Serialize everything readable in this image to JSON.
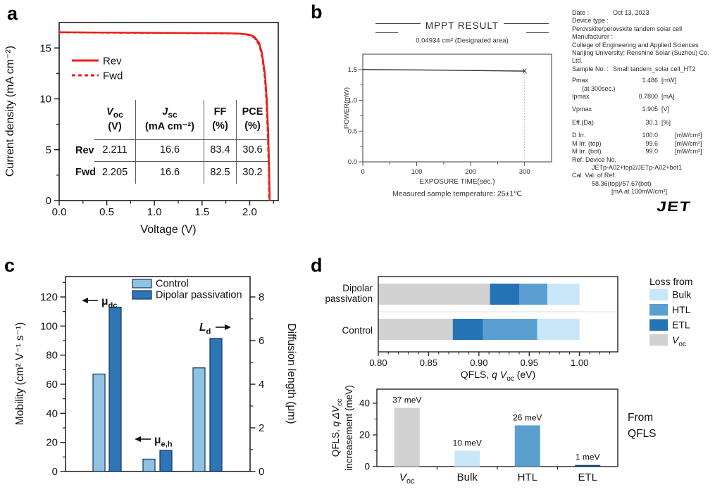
{
  "colors": {
    "red": "#e8211c",
    "control_blue": "#8fc3e1",
    "passivation_blue": "#2e75b6",
    "bar_border": "#16365c",
    "bulk_blue": "#c9e7f8",
    "htl_blue": "#5b9fd0",
    "etl_blue": "#2473b5",
    "etl_dark": "#1c4670",
    "voc_gray": "#d2d2d2",
    "axis_black": "#1a1a1a",
    "scan_gray": "#2e2e2e"
  },
  "panels": {
    "a": {
      "label": "a",
      "xlabel": "Voltage (V)",
      "ylabel": "Current density (mA cm⁻²)",
      "xtick_labels": [
        "0.0",
        "0.5",
        "1.0",
        "1.5",
        "2.0"
      ],
      "ytick_labels": [
        "0",
        "5",
        "10",
        "15"
      ],
      "legend": [
        {
          "label": "Rev",
          "style": "solid"
        },
        {
          "label": "Fwd",
          "style": "dashed"
        }
      ],
      "table": {
        "headers": [
          {
            "name": "*V*_{oc}",
            "unit": "(V)"
          },
          {
            "name": "*J*_{sc}",
            "unit": "(mA cm⁻²)"
          },
          {
            "name": "FF",
            "unit": "(%)"
          },
          {
            "name": "PCE",
            "unit": "(%)"
          }
        ],
        "rows": [
          {
            "name": "Rev",
            "values": [
              "2.211",
              "16.6",
              "83.4",
              "30.6"
            ]
          },
          {
            "name": "Fwd",
            "values": [
              "2.205",
              "16.6",
              "82.5",
              "30.2"
            ]
          }
        ]
      }
    },
    "b": {
      "label": "b",
      "title": "MPPT RESULT",
      "area_note": "0.04934 cm² (Designated area)",
      "ylabel": "POWER(mW)",
      "xlabel": "EXPOSURE TIME(sec.)",
      "temperature_note": "Measured sample temperature: 25±1℃",
      "ytick_labels": [
        "0.0",
        "0.5",
        "1.0",
        "1.5"
      ],
      "xtick_labels": [
        "0",
        "100",
        "200",
        "300"
      ],
      "end_marker": "X",
      "logo": "JET",
      "info": [
        {
          "k": "kv",
          "l": "Date :",
          "v": "Oct 13, 2023"
        },
        {
          "k": "p",
          "t": "Device type :"
        },
        {
          "k": "p",
          "t": "Perovskite/perovskite tandem solar cell"
        },
        {
          "k": "p",
          "t": "Manufacturer :"
        },
        {
          "k": "p",
          "t": "College of Engineering and Applied Sciences"
        },
        {
          "k": "p",
          "t": "Nanjing University; Renshine Solar (Suzhou) Co. Ltd."
        },
        {
          "k": "kv",
          "l": "Sample No. :",
          "v": "Small tandem_solar cell_HT2"
        },
        {
          "k": "sp",
          "h": 5
        },
        {
          "k": "m",
          "l": "Pmax",
          "v": "1.486",
          "u": "[mW]"
        },
        {
          "k": "p",
          "t": "(at 300sec.)",
          "ind": 1
        },
        {
          "k": "m",
          "l": "Ipmax",
          "v": "0.7800",
          "u": "[mA]"
        },
        {
          "k": "sp",
          "h": 7
        },
        {
          "k": "m",
          "l": "Vpmax",
          "v": "1.905",
          "u": "[V]"
        },
        {
          "k": "sp",
          "h": 7
        },
        {
          "k": "m",
          "l": "Eff.(Da)",
          "v": "30.1",
          "u": "[%]"
        },
        {
          "k": "sp",
          "h": 7
        },
        {
          "k": "m",
          "l": "D Irr.",
          "v": "100.0",
          "u": "[mW/cm²]",
          "far": true
        },
        {
          "k": "m",
          "l": "M Irr. (top)",
          "v": "99.6",
          "u": "[mW/cm²]",
          "far": true
        },
        {
          "k": "m",
          "l": "M Irr. (bot)",
          "v": "99.0",
          "u": "[mW/cm²]",
          "far": true
        },
        {
          "k": "p",
          "t": "Ref. Device No."
        },
        {
          "k": "p",
          "t": "JETp-A02+top2/JETp-A02+bot1",
          "ind": 2
        },
        {
          "k": "p",
          "t": "Cal. Val. of Ref."
        },
        {
          "k": "p",
          "t": "58.36(top)/57.67(bot)",
          "ind": 2
        },
        {
          "k": "p",
          "t": "[mA at 100mW/cm²]",
          "ind": 3
        }
      ]
    },
    "c": {
      "label": "c",
      "ylabel_left": "Mobility (cm² V⁻¹ s⁻¹)",
      "ylabel_right": "Diffusion length (μm)",
      "legend": [
        "Control",
        "Dipolar passivation"
      ]
    },
    "d": {
      "label": "d",
      "stack_xlabel": "QFLS, *q* *V*_{oc} (eV)",
      "legend_title": "Loss from",
      "gain_ylabel_line1": "QFLS, *q* *ΔV*_{oc}",
      "gain_ylabel_line2": "increasement (meV)",
      "side_note": [
        "From",
        "QFLS"
      ]
    }
  },
  "chart_data": [
    {
      "id": "jv_curves",
      "type": "line",
      "xlabel": "Voltage (V)",
      "ylabel": "Current density (mA cm⁻²)",
      "xlim": [
        0,
        2.3
      ],
      "ylim": [
        0,
        17.5
      ],
      "xticks": [
        0,
        0.5,
        1.0,
        1.5,
        2.0
      ],
      "yticks": [
        0,
        5,
        10,
        15
      ],
      "legend_position": "upper-left-inside",
      "series": [
        {
          "name": "Rev",
          "style": "solid",
          "color": "#e8211c",
          "voc_V": 2.211,
          "jsc_mA_cm2": 16.6,
          "ff_pct": 83.4,
          "pce_pct": 30.6,
          "points": [
            [
              0,
              16.55
            ],
            [
              0.4,
              16.52
            ],
            [
              0.8,
              16.5
            ],
            [
              1.2,
              16.48
            ],
            [
              1.6,
              16.46
            ],
            [
              1.8,
              16.44
            ],
            [
              1.9,
              16.41
            ],
            [
              1.95,
              16.37
            ],
            [
              2.0,
              16.3
            ],
            [
              2.05,
              16.1
            ],
            [
              2.1,
              15.5
            ],
            [
              2.13,
              14.5
            ],
            [
              2.16,
              12.5
            ],
            [
              2.18,
              10.0
            ],
            [
              2.195,
              6.8
            ],
            [
              2.205,
              3.2
            ],
            [
              2.211,
              0
            ]
          ]
        },
        {
          "name": "Fwd",
          "style": "dashed",
          "color": "#e8211c",
          "voc_V": 2.205,
          "jsc_mA_cm2": 16.6,
          "ff_pct": 82.5,
          "pce_pct": 30.2,
          "points": [
            [
              0,
              16.53
            ],
            [
              0.4,
              16.5
            ],
            [
              0.8,
              16.48
            ],
            [
              1.2,
              16.46
            ],
            [
              1.6,
              16.44
            ],
            [
              1.8,
              16.42
            ],
            [
              1.9,
              16.38
            ],
            [
              1.95,
              16.33
            ],
            [
              2.0,
              16.25
            ],
            [
              2.05,
              16.0
            ],
            [
              2.1,
              15.3
            ],
            [
              2.13,
              14.2
            ],
            [
              2.16,
              12.0
            ],
            [
              2.175,
              9.8
            ],
            [
              2.19,
              6.5
            ],
            [
              2.2,
              3.0
            ],
            [
              2.205,
              0
            ]
          ]
        }
      ]
    },
    {
      "id": "mppt",
      "type": "line",
      "title": "MPPT RESULT",
      "subtitle": "0.04934 cm² (Designated area)",
      "xlabel": "EXPOSURE TIME(sec.)",
      "ylabel": "POWER(mW)",
      "xlim": [
        0,
        350
      ],
      "ylim": [
        0,
        1.75
      ],
      "xticks": [
        0,
        100,
        200,
        300
      ],
      "yticks": [
        0,
        0.5,
        1.0,
        1.5
      ],
      "series": [
        {
          "name": "Power",
          "color": "#2e2e2e",
          "end_marker": "X",
          "points": [
            [
              0,
              1.5
            ],
            [
              150,
              1.49
            ],
            [
              300,
              1.475
            ]
          ]
        }
      ],
      "annotations": {
        "dotted_line_x": 300,
        "temperature": "Measured sample temperature: 25±1℃"
      }
    },
    {
      "id": "mobility_diffusion",
      "type": "bar",
      "ylabel_left": "Mobility (cm² V⁻¹ s⁻¹)",
      "ylabel_right": "Diffusion length (μm)",
      "ylim_left": [
        0,
        134
      ],
      "ylim_right": [
        0,
        8.93
      ],
      "yticks_left": [
        0,
        20,
        40,
        60,
        80,
        100,
        120
      ],
      "yticks_right": [
        0,
        2,
        4,
        6,
        8
      ],
      "legend": [
        "Control",
        "Dipolar passivation"
      ],
      "groups": [
        {
          "label": "μ_{dc}",
          "axis": "left",
          "arrow": "left",
          "control": 67,
          "passivation": 113
        },
        {
          "label": "μ_{e,h}",
          "axis": "left",
          "arrow": "left",
          "control": 8.5,
          "passivation": 14.5
        },
        {
          "label": "*L*_{d}",
          "axis": "right",
          "arrow": "right",
          "control": 4.75,
          "passivation": 6.1
        }
      ]
    },
    {
      "id": "qfls_loss_stacked",
      "type": "bar-horizontal-stacked",
      "xlabel": "QFLS, *q* *V*_{oc} (eV)",
      "xlim": [
        0.8,
        1.038
      ],
      "xticks": [
        0.8,
        0.85,
        0.9,
        0.95,
        1.0
      ],
      "xtick_labels": [
        "0.80",
        "0.85",
        "0.90",
        "0.95",
        "1.00"
      ],
      "legend_title": "Loss from",
      "segments_order": [
        "voc",
        "etl",
        "htl",
        "bulk"
      ],
      "legend": [
        {
          "key": "bulk",
          "label": "Bulk",
          "color": "#c9e7f8"
        },
        {
          "key": "htl",
          "label": "HTL",
          "color": "#5b9fd0"
        },
        {
          "key": "etl",
          "label": "ETL",
          "color": "#2473b5"
        },
        {
          "key": "voc",
          "label": "*V*_{oc}",
          "color": "#d2d2d2"
        }
      ],
      "rows": [
        {
          "label": "Dipolar passivation",
          "label_lines": [
            "Dipolar",
            "passivation"
          ],
          "voc": 0.911,
          "etl": 0.029,
          "htl": 0.028,
          "bulk": 0.032,
          "total_eV": 1.0
        },
        {
          "label": "Control",
          "label_lines": [
            "Control"
          ],
          "voc": 0.874,
          "etl": 0.03,
          "htl": 0.054,
          "bulk": 0.042,
          "total_eV": 1.0
        }
      ]
    },
    {
      "id": "qfls_increasement",
      "type": "bar",
      "ylabel": "QFLS, q ΔV_oc increasement (meV)",
      "ylim": [
        0,
        49
      ],
      "yticks": [
        0,
        20,
        40
      ],
      "categories": [
        "*V*_{oc}",
        "Bulk",
        "HTL",
        "ETL"
      ],
      "values": [
        37,
        10,
        26,
        1
      ],
      "bar_labels": [
        "37 meV",
        "10 meV",
        "26 meV",
        "1 meV"
      ],
      "colors": [
        "#d2d2d2",
        "#c9e7f8",
        "#5b9fd0",
        "#1c4670"
      ],
      "side_note": "From QFLS"
    }
  ]
}
